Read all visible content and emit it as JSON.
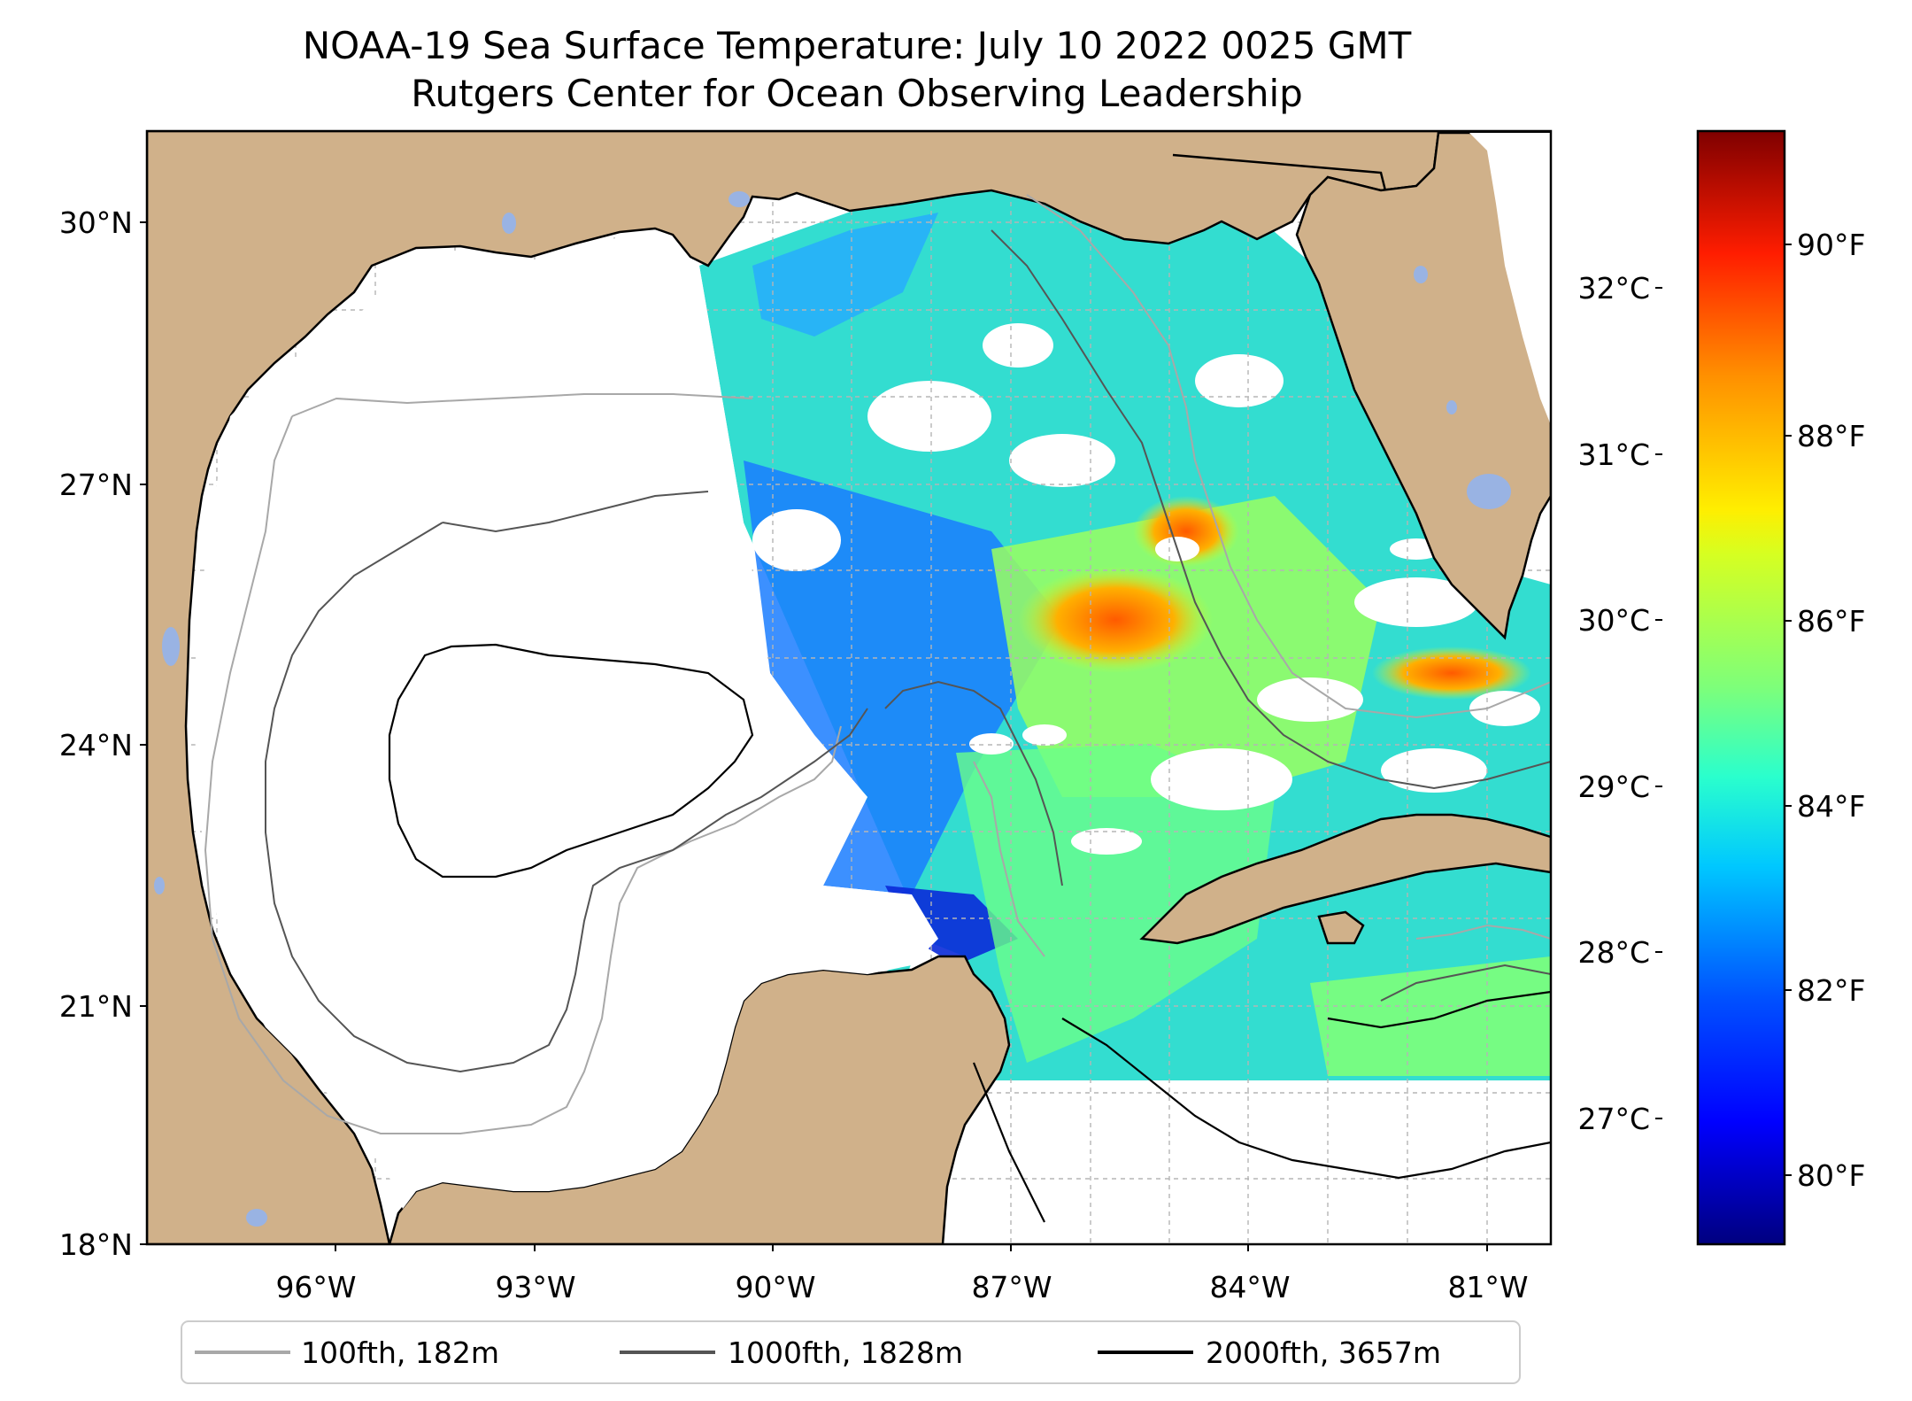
{
  "title": {
    "line1": "NOAA-19 Sea Surface Temperature: July 10 2022 0025 GMT",
    "line2": "Rutgers Center for Ocean Observing Leadership"
  },
  "map": {
    "lon_range": [
      -98.3,
      -80.7
    ],
    "lat_range": [
      18.0,
      31.0
    ],
    "lat_ticks": [
      {
        "value": 30,
        "label": "30°N"
      },
      {
        "value": 27,
        "label": "27°N"
      },
      {
        "value": 24,
        "label": "24°N"
      },
      {
        "value": 21,
        "label": "21°N"
      },
      {
        "value": 18,
        "label": "18°N"
      }
    ],
    "lon_ticks": [
      {
        "value": -96,
        "label": "96°W"
      },
      {
        "value": -93,
        "label": "93°W"
      },
      {
        "value": -90,
        "label": "90°W"
      },
      {
        "value": -87,
        "label": "87°W"
      },
      {
        "value": -84,
        "label": "84°W"
      },
      {
        "value": -81,
        "label": "81°W"
      }
    ],
    "land_color": "#d0b18a",
    "lake_color": "#99b3e3",
    "gridlines": true
  },
  "colorbar": {
    "colormap": "jet",
    "celsius_ticks": [
      {
        "value": 32,
        "label": "32°C"
      },
      {
        "value": 31,
        "label": "31°C"
      },
      {
        "value": 30,
        "label": "30°C"
      },
      {
        "value": 29,
        "label": "29°C"
      },
      {
        "value": 28,
        "label": "28°C"
      },
      {
        "value": 27,
        "label": "27°C"
      }
    ],
    "fahrenheit_ticks": [
      {
        "value": 90,
        "label": "90°F"
      },
      {
        "value": 88,
        "label": "88°F"
      },
      {
        "value": 86,
        "label": "86°F"
      },
      {
        "value": 84,
        "label": "84°F"
      },
      {
        "value": 82,
        "label": "82°F"
      },
      {
        "value": 80,
        "label": "80°F"
      }
    ]
  },
  "legend": {
    "items": [
      {
        "label": "100fth, 182m",
        "color": "#a8a8a8"
      },
      {
        "label": "1000fth, 1828m",
        "color": "#555555"
      },
      {
        "label": "2000fth, 3657m",
        "color": "#000000"
      }
    ]
  }
}
